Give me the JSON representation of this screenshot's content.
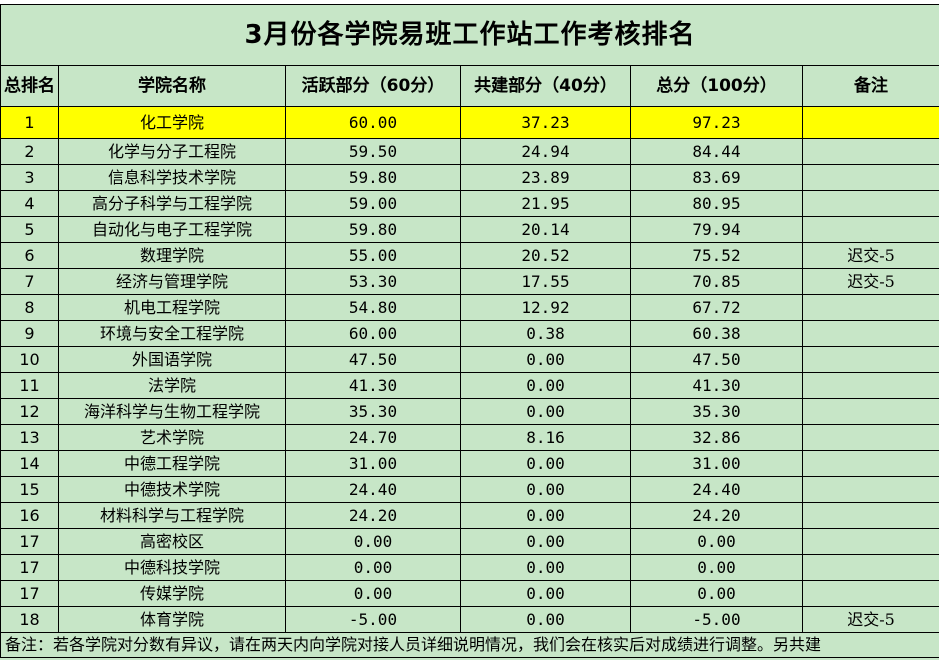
{
  "title": "3月份各学院易班工作站工作考核排名",
  "headers": {
    "rank": "总排名",
    "college": "学院名称",
    "active": "活跃部分（60分）",
    "build": "共建部分（40分）",
    "total": "总分（100分）",
    "note": "备注"
  },
  "rows": [
    {
      "rank": "1",
      "college": "化工学院",
      "active": "60.00",
      "build": "37.23",
      "total": "97.23",
      "note": ""
    },
    {
      "rank": "2",
      "college": "化学与分子工程院",
      "active": "59.50",
      "build": "24.94",
      "total": "84.44",
      "note": ""
    },
    {
      "rank": "3",
      "college": "信息科学技术学院",
      "active": "59.80",
      "build": "23.89",
      "total": "83.69",
      "note": ""
    },
    {
      "rank": "4",
      "college": "高分子科学与工程学院",
      "active": "59.00",
      "build": "21.95",
      "total": "80.95",
      "note": ""
    },
    {
      "rank": "5",
      "college": "自动化与电子工程学院",
      "active": "59.80",
      "build": "20.14",
      "total": "79.94",
      "note": ""
    },
    {
      "rank": "6",
      "college": "数理学院",
      "active": "55.00",
      "build": "20.52",
      "total": "75.52",
      "note": "迟交-5"
    },
    {
      "rank": "7",
      "college": "经济与管理学院",
      "active": "53.30",
      "build": "17.55",
      "total": "70.85",
      "note": "迟交-5"
    },
    {
      "rank": "8",
      "college": "机电工程学院",
      "active": "54.80",
      "build": "12.92",
      "total": "67.72",
      "note": ""
    },
    {
      "rank": "9",
      "college": "环境与安全工程学院",
      "active": "60.00",
      "build": "0.38",
      "total": "60.38",
      "note": ""
    },
    {
      "rank": "10",
      "college": "外国语学院",
      "active": "47.50",
      "build": "0.00",
      "total": "47.50",
      "note": ""
    },
    {
      "rank": "11",
      "college": "法学院",
      "active": "41.30",
      "build": "0.00",
      "total": "41.30",
      "note": ""
    },
    {
      "rank": "12",
      "college": "海洋科学与生物工程学院",
      "active": "35.30",
      "build": "0.00",
      "total": "35.30",
      "note": ""
    },
    {
      "rank": "13",
      "college": "艺术学院",
      "active": "24.70",
      "build": "8.16",
      "total": "32.86",
      "note": ""
    },
    {
      "rank": "14",
      "college": "中德工程学院",
      "active": "31.00",
      "build": "0.00",
      "total": "31.00",
      "note": ""
    },
    {
      "rank": "15",
      "college": "中德技术学院",
      "active": "24.40",
      "build": "0.00",
      "total": "24.40",
      "note": ""
    },
    {
      "rank": "16",
      "college": "材料科学与工程学院",
      "active": "24.20",
      "build": "0.00",
      "total": "24.20",
      "note": ""
    },
    {
      "rank": "17",
      "college": "高密校区",
      "active": "0.00",
      "build": "0.00",
      "total": "0.00",
      "note": ""
    },
    {
      "rank": "17",
      "college": "中德科技学院",
      "active": "0.00",
      "build": "0.00",
      "total": "0.00",
      "note": ""
    },
    {
      "rank": "17",
      "college": "传媒学院",
      "active": "0.00",
      "build": "0.00",
      "total": "0.00",
      "note": ""
    },
    {
      "rank": "18",
      "college": "体育学院",
      "active": "-5.00",
      "build": "0.00",
      "total": "-5.00",
      "note": "迟交-5"
    }
  ],
  "footnote": "备注：若各学院对分数有异议，请在两天内向学院对接人员详细说明情况，我们会在核实后对成绩进行调整。另共建",
  "colors": {
    "sheet_bg": "#c7e6c7",
    "highlight": "#ffff00",
    "grid_line": "#000000"
  }
}
